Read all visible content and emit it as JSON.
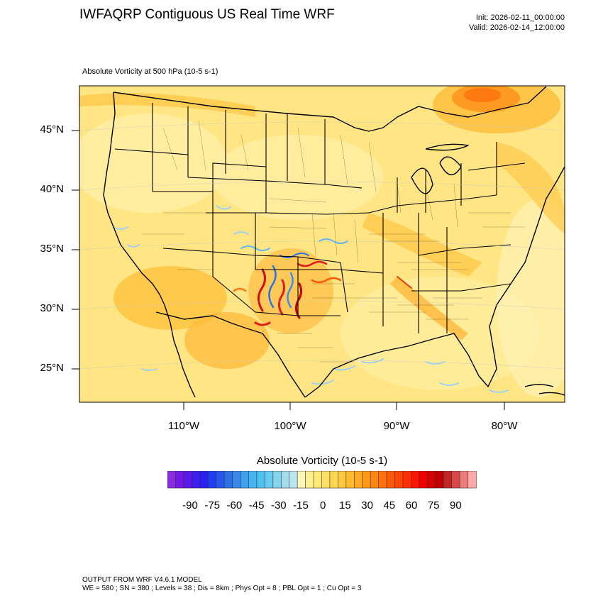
{
  "header": {
    "title": "IWFAQRP Contiguous US Real Time WRF",
    "init": "Init: 2026-02-11_00:00:00",
    "valid": "Valid: 2026-02-14_12:00:00",
    "field_label": "Absolute Vorticity at 500 hPa   (10-5 s-1)"
  },
  "map": {
    "lat_labels": [
      "45°N",
      "40°N",
      "35°N",
      "30°N",
      "25°N"
    ],
    "lon_labels": [
      "110°W",
      "100°W",
      "90°W",
      "80°W"
    ],
    "colors": {
      "background": "#ffe583",
      "land_border": "#000000",
      "state_line": "#000000"
    }
  },
  "colorbar": {
    "title": "Absolute Vorticity  (10-5 s-1)",
    "labels": [
      "-90",
      "-75",
      "-60",
      "-45",
      "-30",
      "-15",
      "0",
      "15",
      "30",
      "45",
      "60",
      "75",
      "90"
    ],
    "colors": [
      "#8a2be2",
      "#7418e6",
      "#5b1aea",
      "#3f1cef",
      "#2a20f2",
      "#1e3ef0",
      "#2857ea",
      "#2d72e6",
      "#3989ea",
      "#3fa0f0",
      "#45b4f2",
      "#4dc2f2",
      "#6acbf1",
      "#86d4f0",
      "#a2ddee",
      "#bbe5ee",
      "#fff6b8",
      "#fff08f",
      "#ffea78",
      "#ffe066",
      "#ffd652",
      "#ffc93f",
      "#ffbb2e",
      "#ffaa22",
      "#ff9918",
      "#ff8612",
      "#ff700e",
      "#ff5a0a",
      "#ff4506",
      "#ff2e03",
      "#ff1500",
      "#f20000",
      "#d80000",
      "#c00000",
      "#c22626",
      "#d84a4a",
      "#ee7c7c",
      "#ffa8a8"
    ]
  },
  "footer": {
    "line1": "OUTPUT FROM WRF V4.6.1 MODEL",
    "line2": "WE = 580 ; SN = 380 ; Levels = 38 ; Dis = 8km ; Phys Opt = 8 ; PBL Opt = 1 ; Cu Opt = 3"
  }
}
